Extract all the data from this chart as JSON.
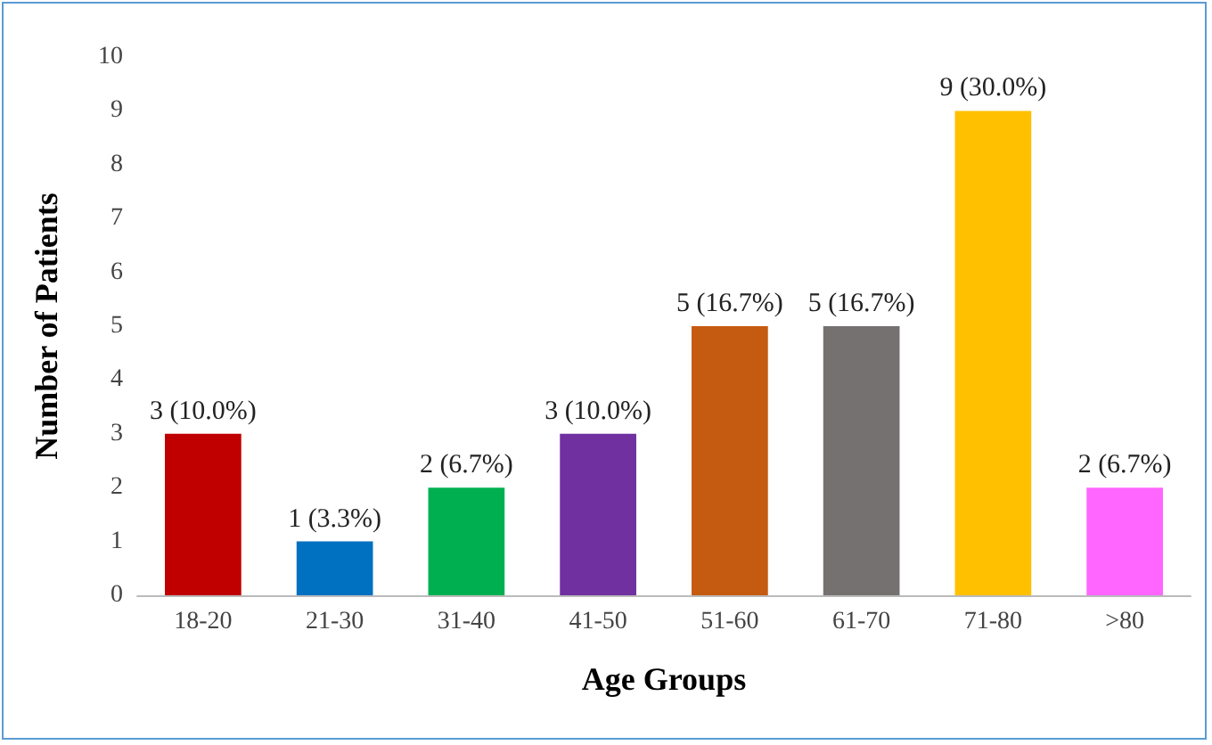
{
  "chart_data": {
    "type": "bar",
    "xlabel": "Age Groups",
    "ylabel": "Number of Patients",
    "categories": [
      "18-20",
      "21-30",
      "31-40",
      "41-50",
      "51-60",
      "61-70",
      "71-80",
      ">80"
    ],
    "values": [
      3,
      1,
      2,
      3,
      5,
      5,
      9,
      2
    ],
    "colors": [
      "#c00000",
      "#0070c0",
      "#00b050",
      "#7030a0",
      "#c55a11",
      "#767171",
      "#ffc000",
      "#ff66ff"
    ],
    "value_labels": [
      "3 (10.0%)",
      "1 (3.3%)",
      "2 (6.7%)",
      "3 (10.0%)",
      "5 (16.7%)",
      "5 (16.7%)",
      "9 (30.0%)",
      "2 (6.7%)"
    ],
    "ylim": [
      0,
      10
    ],
    "yticks": [
      0,
      1,
      2,
      3,
      4,
      5,
      6,
      7,
      8,
      9,
      10
    ],
    "grid": false
  }
}
